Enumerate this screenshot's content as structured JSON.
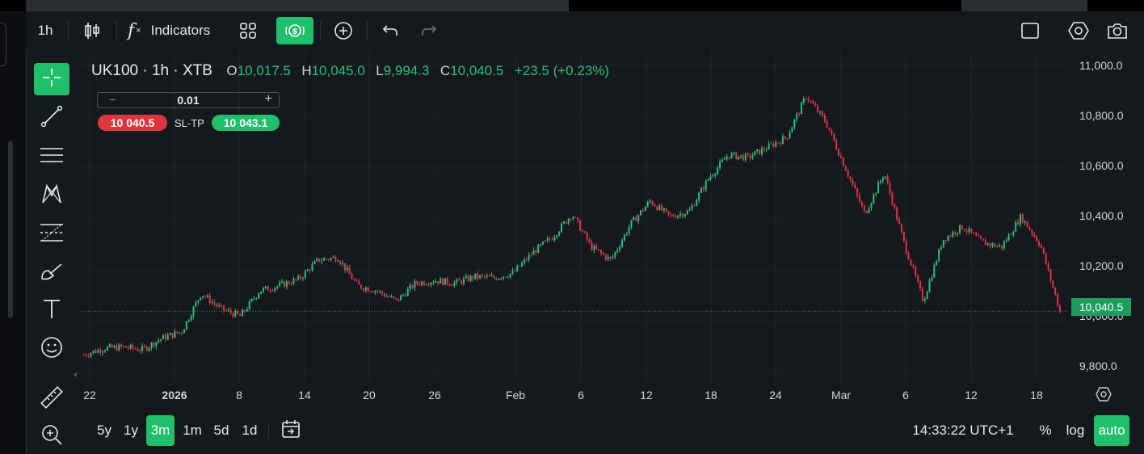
{
  "toolbar": {
    "timeframe": "1h",
    "indicators_label": "Indicators"
  },
  "legend": {
    "symbol": "UK100 · 1h · XTB",
    "open_key": "O",
    "open": "10,017.5",
    "high_key": "H",
    "high": "10,045.0",
    "low_key": "L",
    "low": "9,994.3",
    "close_key": "C",
    "close": "10,040.5",
    "change": "+23.5 (+0.23%)"
  },
  "trade": {
    "lot": "0.01",
    "minus": "−",
    "plus": "+",
    "sell_price": "10 040.5",
    "sltp_label": "SL-TP",
    "buy_price": "10 043.1"
  },
  "y_axis": {
    "labels": [
      "11,000.0",
      "10,800.0",
      "10,600.0",
      "10,400.0",
      "10,200.0",
      "10,000.0",
      "9,800.0"
    ],
    "current_price": "10,040.5"
  },
  "x_axis": {
    "labels": [
      "22",
      "2026",
      "8",
      "14",
      "20",
      "26",
      "Feb",
      "6",
      "12",
      "18",
      "24",
      "Mar",
      "6",
      "12",
      "18"
    ]
  },
  "bottom": {
    "ranges": [
      "5y",
      "1y",
      "3m",
      "1m",
      "5d",
      "1d"
    ],
    "active_range": "3m",
    "clock": "14:33:22 UTC+1",
    "percent": "%",
    "log": "log",
    "auto": "auto"
  },
  "colors": {
    "up": "#22c37a",
    "down": "#e0353f",
    "accent": "#1fbf6b",
    "background": "#15181d"
  },
  "icons": [
    "candlestick-icon",
    "function-icon",
    "layout-grid-icon",
    "trade-icon",
    "add-icon",
    "undo-icon",
    "redo-icon",
    "fullscreen-icon",
    "settings-hex-icon",
    "camera-icon",
    "crosshair-icon",
    "trendline-icon",
    "channel-icon",
    "pattern-icon",
    "fib-icon",
    "brush-icon",
    "text-icon",
    "emoji-icon",
    "ruler-icon",
    "zoom-icon",
    "date-range-icon"
  ],
  "chart_data": {
    "type": "candlestick",
    "symbol": "UK100",
    "interval": "1h",
    "ylim": [
      9760,
      11060
    ],
    "grid": true,
    "anchors": [
      [
        "22",
        9870
      ],
      [
        "24",
        9895
      ],
      [
        "27",
        9900
      ],
      [
        "29",
        9890
      ],
      [
        "2026",
        9935
      ],
      [
        "2",
        9960
      ],
      [
        "5",
        10110
      ],
      [
        "6",
        10050
      ],
      [
        "7",
        10020
      ],
      [
        "9",
        10120
      ],
      [
        "11",
        10140
      ],
      [
        "13",
        10165
      ],
      [
        "15",
        10240
      ],
      [
        "16",
        10250
      ],
      [
        "17",
        10140
      ],
      [
        "19",
        10120
      ],
      [
        "20",
        10080
      ],
      [
        "22",
        10150
      ],
      [
        "24",
        10160
      ],
      [
        "26",
        10150
      ],
      [
        "28",
        10175
      ],
      [
        "30",
        10170
      ],
      [
        "Feb",
        10190
      ],
      [
        "2",
        10270
      ],
      [
        "4",
        10330
      ],
      [
        "5",
        10420
      ],
      [
        "7",
        10290
      ],
      [
        "9",
        10240
      ],
      [
        "11",
        10380
      ],
      [
        "13",
        10470
      ],
      [
        "15",
        10410
      ],
      [
        "17",
        10430
      ],
      [
        "19",
        10560
      ],
      [
        "21",
        10650
      ],
      [
        "23",
        10640
      ],
      [
        "25",
        10680
      ],
      [
        "27",
        10720
      ],
      [
        "Mar",
        10880
      ],
      [
        "1",
        10780
      ],
      [
        "3",
        10600
      ],
      [
        "4",
        10420
      ],
      [
        "5",
        10580
      ],
      [
        "6",
        10310
      ],
      [
        "8",
        10080
      ],
      [
        "10",
        10320
      ],
      [
        "12",
        10370
      ],
      [
        "14",
        10310
      ],
      [
        "16",
        10290
      ],
      [
        "18",
        10410
      ],
      [
        "19",
        10300
      ],
      [
        "20",
        10040
      ]
    ]
  }
}
